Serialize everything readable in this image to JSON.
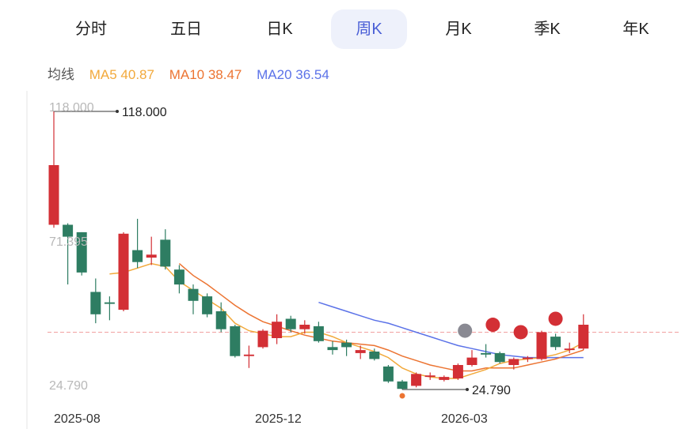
{
  "tabs": [
    {
      "label": "分时",
      "active": false
    },
    {
      "label": "五日",
      "active": false
    },
    {
      "label": "日K",
      "active": false
    },
    {
      "label": "周K",
      "active": true
    },
    {
      "label": "月K",
      "active": false
    },
    {
      "label": "季K",
      "active": false
    },
    {
      "label": "年K",
      "active": false
    }
  ],
  "ma_legend": {
    "title": "均线",
    "ma5": "MA5 40.87",
    "ma10": "MA10 38.47",
    "ma20": "MA20 36.54"
  },
  "colors": {
    "up": "#d32f35",
    "down": "#2e7d62",
    "ma5": "#f2a93b",
    "ma10": "#ec7432",
    "ma20": "#5b72e8",
    "active_tab": "#4a5fd6",
    "price_line": "#f2a0a0"
  },
  "chart_data": {
    "type": "candlestick",
    "y_tick_labels": [
      "118.000",
      "71.395",
      "24.790"
    ],
    "ylim": [
      24.79,
      118.0
    ],
    "x_tick_labels": [
      "2025-08",
      "2025-12",
      "2026-03"
    ],
    "max_label": "118.000",
    "min_label": "24.790",
    "current_price": 44.0,
    "candles": [
      {
        "o": 80.0,
        "c": 100.0,
        "h": 118.0,
        "l": 79.0
      },
      {
        "o": 80.0,
        "c": 76.0,
        "h": 80.5,
        "l": 60.0
      },
      {
        "o": 77.5,
        "c": 64.0,
        "h": 77.5,
        "l": 63.0
      },
      {
        "o": 57.5,
        "c": 50.0,
        "h": 62.0,
        "l": 47.0
      },
      {
        "o": 54.0,
        "c": 53.5,
        "h": 56.0,
        "l": 48.0
      },
      {
        "o": 51.5,
        "c": 77.0,
        "h": 77.5,
        "l": 51.0
      },
      {
        "o": 71.5,
        "c": 67.5,
        "h": 82.0,
        "l": 65.5
      },
      {
        "o": 69.0,
        "c": 70.0,
        "h": 76.0,
        "l": 66.5
      },
      {
        "o": 75.0,
        "c": 66.0,
        "h": 78.5,
        "l": 65.0
      },
      {
        "o": 65.0,
        "c": 60.0,
        "h": 66.5,
        "l": 57.0
      },
      {
        "o": 58.5,
        "c": 54.5,
        "h": 60.0,
        "l": 50.0
      },
      {
        "o": 56.0,
        "c": 50.0,
        "h": 57.0,
        "l": 49.0
      },
      {
        "o": 51.0,
        "c": 45.0,
        "h": 54.0,
        "l": 44.0
      },
      {
        "o": 46.0,
        "c": 36.0,
        "h": 46.5,
        "l": 35.5
      },
      {
        "o": 36.0,
        "c": 36.5,
        "h": 39.5,
        "l": 32.0
      },
      {
        "o": 39.0,
        "c": 44.5,
        "h": 45.0,
        "l": 38.5
      },
      {
        "o": 42.0,
        "c": 47.5,
        "h": 50.0,
        "l": 40.0
      },
      {
        "o": 48.5,
        "c": 45.0,
        "h": 49.5,
        "l": 44.0
      },
      {
        "o": 45.0,
        "c": 46.5,
        "h": 48.0,
        "l": 43.5
      },
      {
        "o": 46.0,
        "c": 41.0,
        "h": 47.5,
        "l": 40.5
      },
      {
        "o": 39.0,
        "c": 38.0,
        "h": 41.0,
        "l": 36.5
      },
      {
        "o": 40.5,
        "c": 39.0,
        "h": 41.5,
        "l": 36.0
      },
      {
        "o": 37.0,
        "c": 38.0,
        "h": 39.5,
        "l": 35.0
      },
      {
        "o": 37.5,
        "c": 35.0,
        "h": 38.5,
        "l": 34.5
      },
      {
        "o": 32.5,
        "c": 27.5,
        "h": 33.0,
        "l": 27.0
      },
      {
        "o": 27.5,
        "c": 25.0,
        "h": 28.0,
        "l": 24.79
      },
      {
        "o": 26.0,
        "c": 30.0,
        "h": 30.5,
        "l": 25.5
      },
      {
        "o": 29.0,
        "c": 29.5,
        "h": 30.5,
        "l": 28.0
      },
      {
        "o": 28.0,
        "c": 29.0,
        "h": 29.5,
        "l": 27.5
      },
      {
        "o": 28.5,
        "c": 33.0,
        "h": 33.5,
        "l": 28.0
      },
      {
        "o": 33.0,
        "c": 35.5,
        "h": 38.0,
        "l": 32.5
      },
      {
        "o": 37.0,
        "c": 36.5,
        "h": 40.0,
        "l": 35.5
      },
      {
        "o": 37.0,
        "c": 34.0,
        "h": 37.5,
        "l": 33.5
      },
      {
        "o": 33.0,
        "c": 35.0,
        "h": 35.5,
        "l": 31.5
      },
      {
        "o": 35.0,
        "c": 35.5,
        "h": 36.0,
        "l": 34.0
      },
      {
        "o": 35.0,
        "c": 44.0,
        "h": 44.5,
        "l": 34.5
      },
      {
        "o": 42.5,
        "c": 39.0,
        "h": 43.5,
        "l": 38.0
      },
      {
        "o": 38.0,
        "c": 38.5,
        "h": 40.5,
        "l": 37.0
      },
      {
        "o": 38.5,
        "c": 46.5,
        "h": 50.0,
        "l": 38.0
      }
    ],
    "ma5": [
      null,
      null,
      null,
      null,
      63.5,
      64.0,
      65.5,
      67.0,
      66.0,
      61.0,
      58.0,
      55.0,
      52.0,
      47.0,
      44.5,
      43.5,
      42.5,
      42.5,
      44.0,
      44.0,
      42.5,
      40.5,
      39.0,
      37.5,
      35.5,
      32.0,
      30.0,
      29.0,
      28.5,
      28.5,
      30.0,
      31.5,
      33.5,
      34.5,
      35.0,
      35.5,
      36.5,
      38.0,
      40.5
    ],
    "ma10": [
      null,
      null,
      null,
      null,
      null,
      null,
      null,
      null,
      null,
      67.0,
      63.0,
      60.0,
      56.5,
      53.0,
      50.0,
      47.5,
      46.0,
      44.5,
      43.0,
      42.0,
      41.0,
      40.5,
      40.0,
      39.5,
      38.0,
      36.0,
      34.5,
      33.0,
      32.0,
      31.0,
      31.0,
      32.0,
      32.0,
      32.0,
      33.0,
      34.0,
      35.0,
      36.5,
      38.0
    ],
    "ma20": [
      null,
      null,
      null,
      null,
      null,
      null,
      null,
      null,
      null,
      null,
      null,
      null,
      null,
      null,
      null,
      null,
      null,
      null,
      null,
      54.0,
      52.5,
      51.0,
      49.5,
      48.0,
      47.0,
      45.5,
      44.0,
      42.5,
      41.0,
      39.5,
      38.5,
      37.5,
      36.5,
      36.0,
      35.5,
      35.5,
      35.5,
      35.5,
      35.5
    ],
    "event_markers": [
      {
        "index": 29.5,
        "price": 44.5,
        "color": "#8a8a93"
      },
      {
        "index": 31.5,
        "price": 46.5,
        "color": "#d32f35"
      },
      {
        "index": 33.5,
        "price": 44.0,
        "color": "#d32f35"
      },
      {
        "index": 36.0,
        "price": 48.5,
        "color": "#d32f35"
      }
    ]
  }
}
